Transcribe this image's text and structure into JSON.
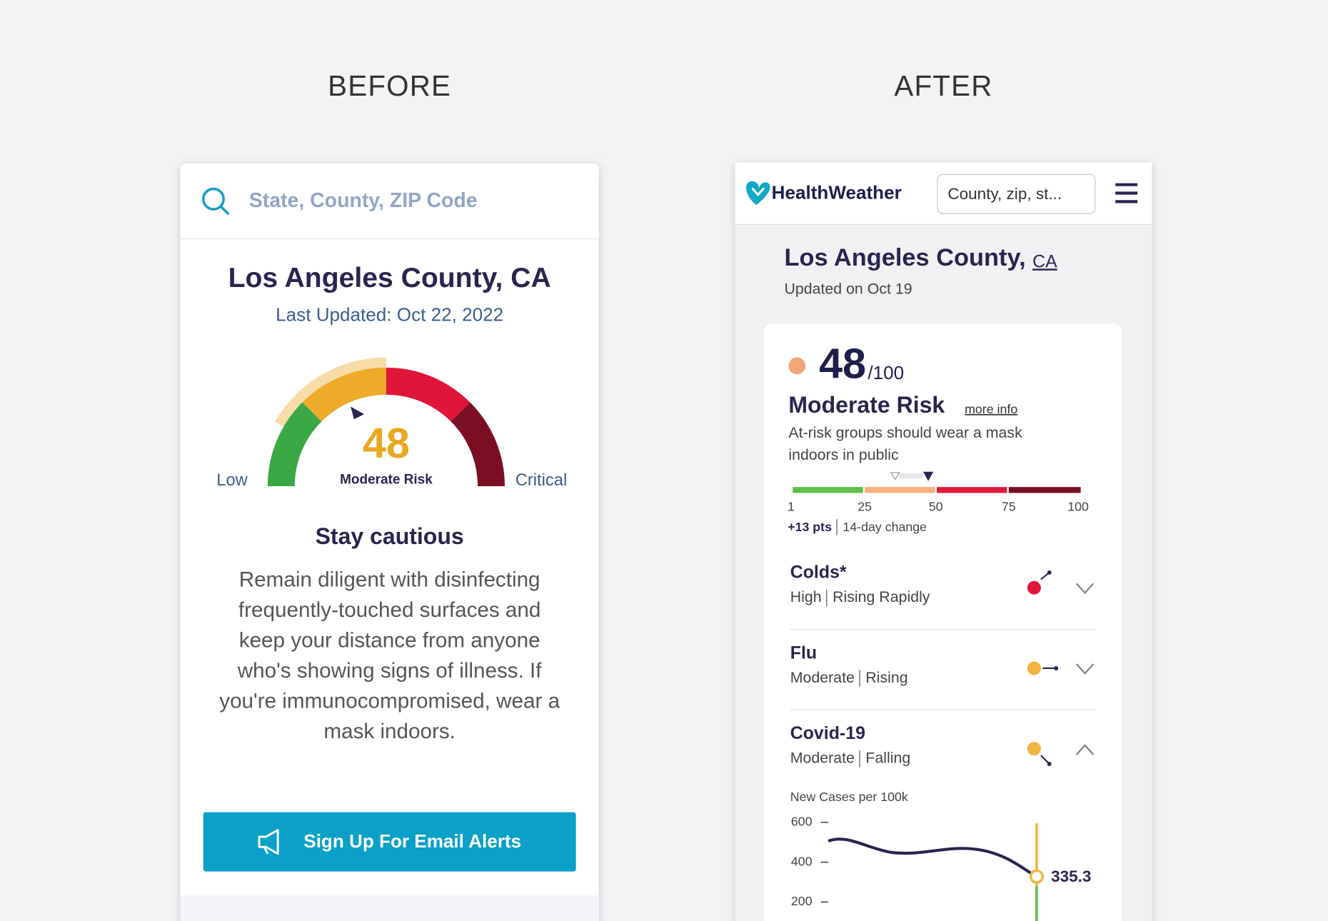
{
  "before": {
    "label": "BEFORE",
    "search_placeholder": "State, County, ZIP Code",
    "location": "Los Angeles County, CA",
    "last_updated": "Last Updated: Oct 22, 2022",
    "gauge": {
      "score": "48",
      "status": "Moderate Risk",
      "low_label": "Low",
      "high_label": "Critical"
    },
    "heading": "Stay cautious",
    "body_lines": [
      "Remain diligent with disinfecting",
      "frequently-touched surfaces and",
      "keep your distance from anyone",
      "who's showing signs of illness. If",
      "you're immunocompromised, wear a",
      "mask indoors."
    ],
    "button": "Sign Up For Email Alerts"
  },
  "after": {
    "label": "AFTER",
    "brand": "HealthWeather",
    "search_placeholder": "County, zip, st...",
    "county": "Los Angeles County,",
    "state": "CA",
    "updated": "Updated on Oct 19",
    "score": "48",
    "score_max": "/100",
    "risk": "Moderate Risk",
    "more_info": "more info",
    "advice_lines": [
      "At-risk groups should wear a mask",
      "indoors in public"
    ],
    "scale_ticks": [
      "1",
      "25",
      "50",
      "75",
      "100"
    ],
    "change": "+13 pts",
    "change_period": "14-day change",
    "conditions": [
      {
        "name": "Colds*",
        "level": "High",
        "trend": "Rising Rapidly"
      },
      {
        "name": "Flu",
        "level": "Moderate",
        "trend": "Rising"
      },
      {
        "name": "Covid-19",
        "level": "Moderate",
        "trend": "Falling"
      }
    ],
    "cases_chart": {
      "title": "New Cases per 100k",
      "yticks": [
        "600",
        "400",
        "200"
      ],
      "current": "335.3"
    }
  }
}
